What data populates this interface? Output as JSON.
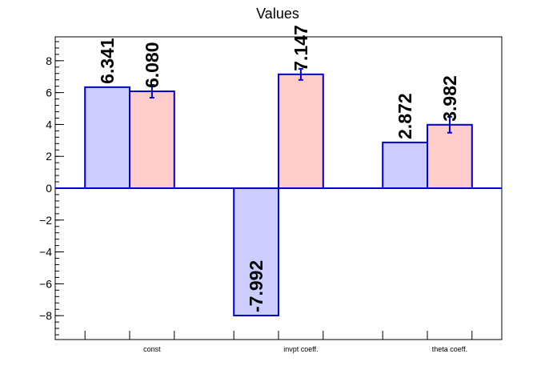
{
  "chart_data": {
    "type": "bar",
    "title": "Values",
    "xlabel": "",
    "ylabel": "",
    "categories": [
      "const",
      "invpt coeff.",
      "theta coeff."
    ],
    "ylim": [
      -9.5,
      9.5
    ],
    "yticks": [
      -8,
      -6,
      -4,
      -2,
      0,
      2,
      4,
      6,
      8
    ],
    "ytick_labels": [
      "−8",
      "−6",
      "−4",
      "−2",
      "0",
      "2",
      "4",
      "6",
      "8"
    ],
    "grid": false,
    "legend": "none",
    "series": [
      {
        "values": [
          6.341,
          -7.992,
          2.872
        ],
        "labels": [
          "6.341",
          "-7.992",
          "2.872"
        ],
        "errors": [
          0,
          0,
          0
        ],
        "color": "#ccccff"
      },
      {
        "values": [
          6.08,
          7.147,
          3.982
        ],
        "labels": [
          "6.080",
          "7.147",
          "3.982"
        ],
        "errors": [
          0.4,
          0.35,
          0.5
        ],
        "color": "#ffcccc"
      }
    ],
    "edge_color": "#0000cc"
  }
}
